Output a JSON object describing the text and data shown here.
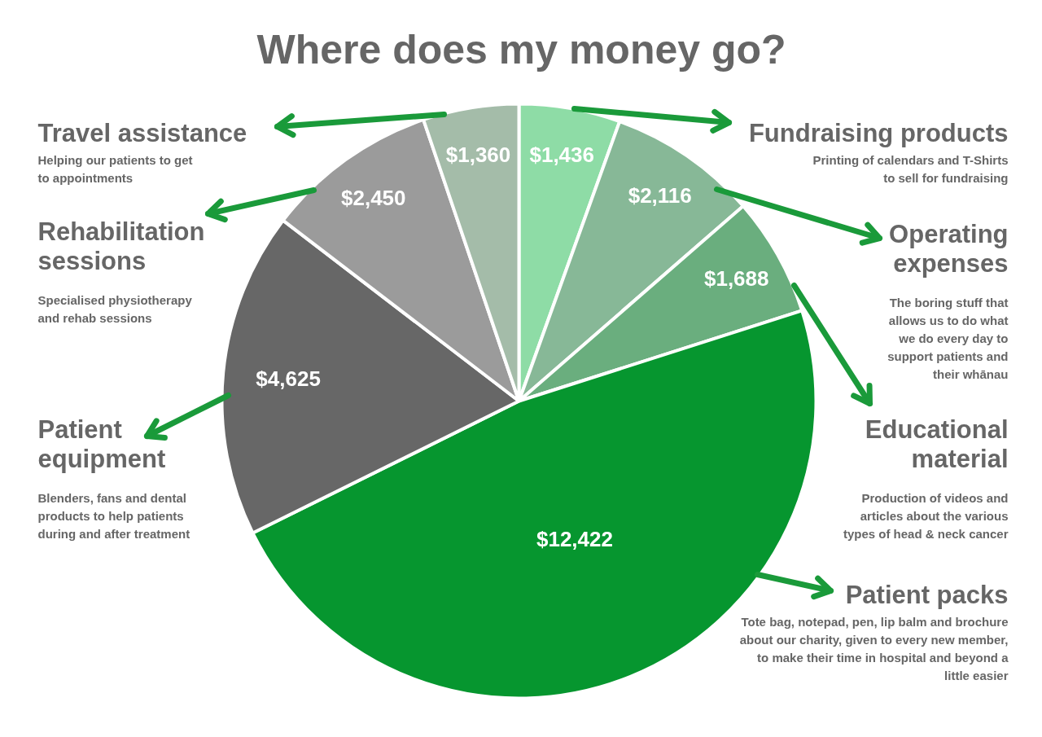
{
  "chart_data": {
    "type": "pie",
    "title": "Where does my money go?",
    "categories": [
      "Fundraising products",
      "Operating expenses",
      "Educational material",
      "Patient packs",
      "Patient equipment",
      "Rehabilitation sessions",
      "Travel assistance"
    ],
    "values": [
      1436,
      2116,
      1688,
      12422,
      4625,
      2450,
      1360
    ],
    "value_labels": [
      "$1,436",
      "$2,116",
      "$1,688",
      "$12,422",
      "$4,625",
      "$2,450",
      "$1,360"
    ],
    "colors": [
      "#8edca6",
      "#87b897",
      "#6aae7e",
      "#06962f",
      "#676767",
      "#9b9b9b",
      "#a4bca9"
    ],
    "annotations": [
      "Printing of calendars and T-Shirts to sell for fundraising",
      "The boring stuff that allows us to do what we do every day to support patients and their whānau",
      "Production of videos and articles about the various types of head & neck cancer",
      "Tote bag, notepad, pen, lip balm and brochure about our charity, given to every new member, to make their time in hospital and beyond a little easier",
      "Blenders, fans and dental products to help patients during and after treatment",
      "Specialised physiotherapy and rehab sessions",
      "Helping our patients to get to appointments"
    ]
  }
}
